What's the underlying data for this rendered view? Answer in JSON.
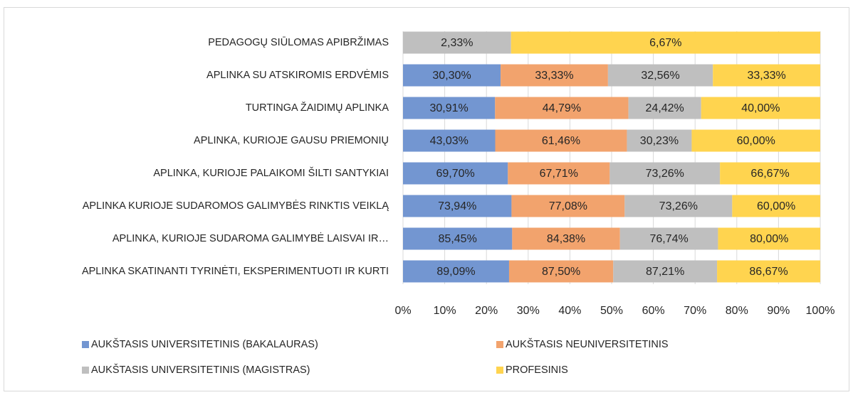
{
  "chart_data": {
    "type": "stacked-bar-100",
    "categories": [
      "PEDAGOGŲ SIŪLOMAS APIBRŽIMAS",
      "APLINKA SU ATSKIROMIS ERDVĖMIS",
      "TURTINGA ŽAIDIMŲ APLINKA",
      "APLINKA, KURIOJE GAUSU PRIEMONIŲ",
      "APLINKA, KURIOJE PALAIKOMI ŠILTI SANTYKIAI",
      "APLINKA KURIOJE SUDAROMOS GALIMYBĖS RINKTIS VEIKLĄ",
      "APLINKA, KURIOJE SUDAROMA GALIMYBĖ LAISVAI IR…",
      "APLINKA SKATINANTI TYRINĖTI, EKSPERIMENTUOTI IR KURTI"
    ],
    "series": [
      {
        "name": "AUKŠTASIS UNIVERSITETINIS (BAKALAURAS)",
        "color": "#7396d1",
        "values": [
          null,
          30.3,
          30.91,
          43.03,
          69.7,
          73.94,
          85.45,
          89.09
        ],
        "value_labels": [
          null,
          "30,30%",
          "30,91%",
          "43,03%",
          "69,70%",
          "73,94%",
          "85,45%",
          "89,09%"
        ]
      },
      {
        "name": "AUKŠTASIS NEUNIVERSITETINIS",
        "color": "#f2a36d",
        "values": [
          null,
          33.33,
          44.79,
          61.46,
          67.71,
          77.08,
          84.38,
          87.5
        ],
        "value_labels": [
          null,
          "33,33%",
          "44,79%",
          "61,46%",
          "67,71%",
          "77,08%",
          "84,38%",
          "87,50%"
        ]
      },
      {
        "name": "AUKŠTASIS UNIVERSITETINIS (MAGISTRAS)",
        "color": "#bfbfbf",
        "values": [
          2.33,
          32.56,
          24.42,
          30.23,
          73.26,
          73.26,
          76.74,
          87.21
        ],
        "value_labels": [
          "2,33%",
          "32,56%",
          "24,42%",
          "30,23%",
          "73,26%",
          "73,26%",
          "76,74%",
          "87,21%"
        ]
      },
      {
        "name": "PROFESINIS",
        "color": "#ffd44f",
        "values": [
          6.67,
          33.33,
          40.0,
          60.0,
          66.67,
          60.0,
          80.0,
          86.67
        ],
        "value_labels": [
          "6,67%",
          "33,33%",
          "40,00%",
          "60,00%",
          "66,67%",
          "60,00%",
          "80,00%",
          "86,67%"
        ]
      }
    ],
    "xlim": [
      0,
      100
    ],
    "xticks": [
      {
        "value": 0,
        "label": "0%"
      },
      {
        "value": 10,
        "label": "10%"
      },
      {
        "value": 20,
        "label": "20%"
      },
      {
        "value": 30,
        "label": "30%"
      },
      {
        "value": 40,
        "label": "40%"
      },
      {
        "value": 50,
        "label": "50%"
      },
      {
        "value": 60,
        "label": "60%"
      },
      {
        "value": 70,
        "label": "70%"
      },
      {
        "value": 80,
        "label": "80%"
      },
      {
        "value": 90,
        "label": "90%"
      },
      {
        "value": 100,
        "label": "100%"
      }
    ],
    "grid": true
  }
}
